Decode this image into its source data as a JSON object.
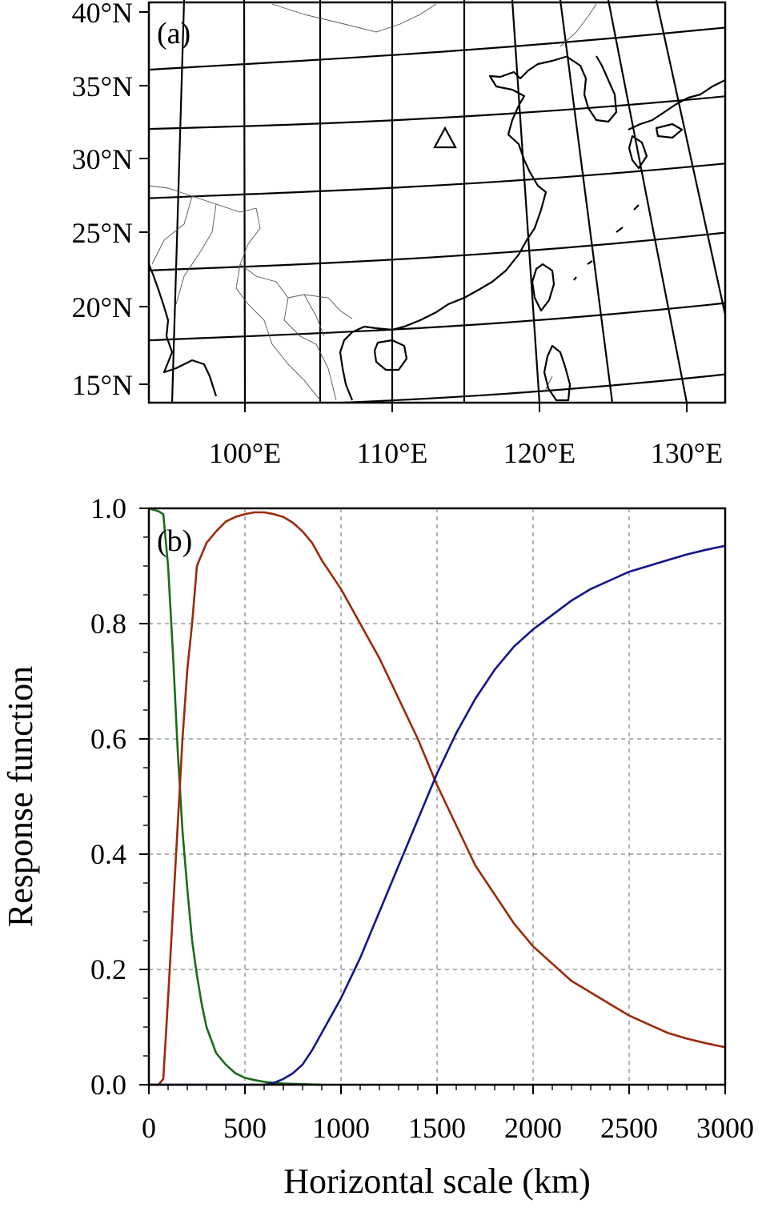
{
  "panel_a": {
    "label": "(a)",
    "lat_labels": [
      "40°N",
      "35°N",
      "30°N",
      "25°N",
      "20°N",
      "15°N"
    ],
    "lon_labels": [
      "100°E",
      "110°E",
      "120°E",
      "130°E"
    ],
    "station_marker": "triangle",
    "station_lon": 113.5,
    "station_lat": 31.5
  },
  "chart_data": {
    "type": "line",
    "panel_label": "(b)",
    "xlabel": "Horizontal scale (km)",
    "ylabel": "Response function",
    "xlim": [
      0,
      3000
    ],
    "ylim": [
      0,
      1.0
    ],
    "x_tick_labels": [
      "0",
      "500",
      "1000",
      "1500",
      "2000",
      "2500",
      "3000"
    ],
    "y_tick_labels": [
      "0.0",
      "0.2",
      "0.4",
      "0.6",
      "0.8",
      "1.0"
    ],
    "grid": true,
    "legend": "none",
    "series": [
      {
        "color": "#1a6b1a",
        "x": [
          0,
          50,
          75,
          100,
          125,
          150,
          175,
          200,
          225,
          250,
          275,
          300,
          350,
          400,
          450,
          500,
          550,
          600,
          700,
          800,
          900
        ],
        "y": [
          1.0,
          0.995,
          0.99,
          0.9,
          0.75,
          0.58,
          0.44,
          0.34,
          0.25,
          0.19,
          0.14,
          0.1,
          0.055,
          0.035,
          0.02,
          0.012,
          0.008,
          0.005,
          0.002,
          0.001,
          0.0
        ]
      },
      {
        "color": "#9b2a0b",
        "x": [
          0,
          50,
          75,
          100,
          125,
          150,
          175,
          200,
          225,
          250,
          300,
          350,
          400,
          450,
          500,
          550,
          600,
          650,
          700,
          750,
          800,
          850,
          900,
          1000,
          1100,
          1200,
          1300,
          1400,
          1500,
          1600,
          1700,
          1800,
          1900,
          2000,
          2100,
          2200,
          2300,
          2400,
          2500,
          2600,
          2700,
          2800,
          2900,
          3000
        ],
        "y": [
          0.0,
          0.0,
          0.01,
          0.15,
          0.3,
          0.45,
          0.6,
          0.72,
          0.8,
          0.9,
          0.94,
          0.96,
          0.977,
          0.985,
          0.99,
          0.993,
          0.993,
          0.99,
          0.985,
          0.975,
          0.96,
          0.94,
          0.91,
          0.86,
          0.8,
          0.74,
          0.67,
          0.6,
          0.52,
          0.45,
          0.38,
          0.33,
          0.28,
          0.24,
          0.21,
          0.18,
          0.16,
          0.14,
          0.12,
          0.105,
          0.09,
          0.08,
          0.072,
          0.065
        ]
      },
      {
        "color": "#14148c",
        "x": [
          0,
          500,
          600,
          650,
          700,
          750,
          800,
          850,
          900,
          1000,
          1100,
          1200,
          1300,
          1400,
          1500,
          1600,
          1700,
          1800,
          1900,
          2000,
          2100,
          2200,
          2300,
          2400,
          2500,
          2600,
          2700,
          2800,
          2900,
          3000
        ],
        "y": [
          0.0,
          0.0,
          0.0,
          0.003,
          0.01,
          0.02,
          0.035,
          0.06,
          0.09,
          0.15,
          0.22,
          0.3,
          0.38,
          0.46,
          0.54,
          0.61,
          0.67,
          0.72,
          0.76,
          0.79,
          0.815,
          0.84,
          0.86,
          0.875,
          0.89,
          0.9,
          0.91,
          0.92,
          0.928,
          0.935
        ]
      }
    ]
  }
}
